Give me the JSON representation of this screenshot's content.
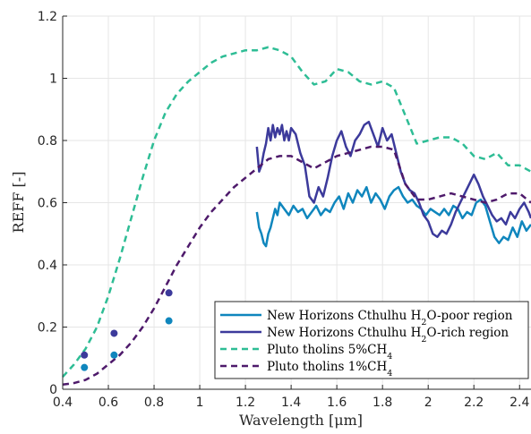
{
  "chart_data": {
    "type": "line",
    "xlabel": "Wavelength [μm]",
    "ylabel": "REFF [-]",
    "xlim": [
      0.4,
      2.45
    ],
    "ylim": [
      0,
      1.2
    ],
    "x_ticks": [
      "0.4",
      "0.6",
      "0.8",
      "1",
      "1.2",
      "1.4",
      "1.6",
      "1.8",
      "2",
      "2.2",
      "2.4"
    ],
    "y_ticks": [
      "0",
      "0.2",
      "0.4",
      "0.6",
      "0.8",
      "1",
      "1.2"
    ],
    "grid": true,
    "legend_position": "bottom-right",
    "colors": {
      "h2o_poor": "#0f86bd",
      "h2o_rich": "#3c3a9b",
      "tholins_5": "#2ebd95",
      "tholins_1": "#4e1a6b"
    },
    "series": [
      {
        "name": "New Horizons Cthulhu H2O-poor region",
        "legend": [
          "New Horizons Cthulhu H",
          "2",
          "O-poor region"
        ],
        "style": "solid",
        "color": "#0f86bd",
        "x": [
          1.25,
          1.26,
          1.27,
          1.28,
          1.29,
          1.3,
          1.31,
          1.32,
          1.33,
          1.34,
          1.35,
          1.37,
          1.39,
          1.41,
          1.43,
          1.45,
          1.47,
          1.49,
          1.51,
          1.53,
          1.55,
          1.57,
          1.59,
          1.61,
          1.63,
          1.65,
          1.67,
          1.69,
          1.71,
          1.73,
          1.75,
          1.77,
          1.79,
          1.81,
          1.83,
          1.85,
          1.87,
          1.89,
          1.91,
          1.93,
          1.95,
          1.97,
          1.99,
          2.01,
          2.03,
          2.05,
          2.07,
          2.09,
          2.11,
          2.13,
          2.15,
          2.17,
          2.19,
          2.21,
          2.23,
          2.25,
          2.27,
          2.29,
          2.31,
          2.33,
          2.35,
          2.37,
          2.39,
          2.41,
          2.43,
          2.45
        ],
        "y": [
          0.57,
          0.52,
          0.5,
          0.47,
          0.46,
          0.5,
          0.52,
          0.55,
          0.58,
          0.56,
          0.6,
          0.58,
          0.56,
          0.59,
          0.57,
          0.58,
          0.55,
          0.57,
          0.59,
          0.56,
          0.58,
          0.57,
          0.6,
          0.62,
          0.58,
          0.63,
          0.6,
          0.64,
          0.62,
          0.65,
          0.6,
          0.63,
          0.61,
          0.58,
          0.62,
          0.64,
          0.65,
          0.62,
          0.6,
          0.61,
          0.59,
          0.58,
          0.56,
          0.58,
          0.57,
          0.56,
          0.58,
          0.56,
          0.59,
          0.58,
          0.55,
          0.57,
          0.56,
          0.6,
          0.61,
          0.59,
          0.54,
          0.49,
          0.47,
          0.49,
          0.48,
          0.52,
          0.49,
          0.54,
          0.51,
          0.53
        ]
      },
      {
        "name": "New Horizons Cthulhu H2O-rich region",
        "legend": [
          "New Horizons Cthulhu H",
          "2",
          "O-rich region"
        ],
        "style": "solid",
        "color": "#3c3a9b",
        "x": [
          1.25,
          1.26,
          1.27,
          1.28,
          1.29,
          1.3,
          1.31,
          1.32,
          1.33,
          1.34,
          1.35,
          1.36,
          1.37,
          1.38,
          1.39,
          1.4,
          1.42,
          1.44,
          1.46,
          1.48,
          1.5,
          1.52,
          1.54,
          1.56,
          1.58,
          1.6,
          1.62,
          1.64,
          1.66,
          1.68,
          1.7,
          1.72,
          1.74,
          1.76,
          1.78,
          1.8,
          1.82,
          1.84,
          1.86,
          1.88,
          1.9,
          1.92,
          1.94,
          1.96,
          1.98,
          2.0,
          2.02,
          2.04,
          2.06,
          2.08,
          2.1,
          2.12,
          2.14,
          2.16,
          2.18,
          2.2,
          2.22,
          2.24,
          2.26,
          2.28,
          2.3,
          2.32,
          2.34,
          2.36,
          2.38,
          2.4,
          2.42,
          2.44,
          2.45
        ],
        "y": [
          0.78,
          0.7,
          0.72,
          0.76,
          0.79,
          0.84,
          0.8,
          0.85,
          0.81,
          0.84,
          0.82,
          0.85,
          0.8,
          0.83,
          0.8,
          0.84,
          0.82,
          0.76,
          0.72,
          0.62,
          0.6,
          0.65,
          0.62,
          0.68,
          0.75,
          0.8,
          0.83,
          0.78,
          0.75,
          0.8,
          0.82,
          0.85,
          0.86,
          0.82,
          0.78,
          0.84,
          0.8,
          0.82,
          0.76,
          0.7,
          0.66,
          0.64,
          0.63,
          0.6,
          0.56,
          0.54,
          0.5,
          0.49,
          0.51,
          0.5,
          0.53,
          0.57,
          0.6,
          0.63,
          0.66,
          0.69,
          0.66,
          0.62,
          0.59,
          0.56,
          0.54,
          0.55,
          0.53,
          0.57,
          0.55,
          0.58,
          0.6,
          0.57,
          0.55
        ]
      },
      {
        "name": "Pluto tholins 5%CH4",
        "legend": [
          "Pluto tholins 5%CH",
          "4",
          ""
        ],
        "style": "dashed",
        "color": "#2ebd95",
        "x": [
          0.4,
          0.45,
          0.5,
          0.55,
          0.6,
          0.65,
          0.7,
          0.75,
          0.8,
          0.85,
          0.9,
          0.95,
          1.0,
          1.05,
          1.1,
          1.15,
          1.2,
          1.25,
          1.3,
          1.35,
          1.4,
          1.45,
          1.5,
          1.55,
          1.6,
          1.65,
          1.7,
          1.75,
          1.8,
          1.85,
          1.9,
          1.95,
          2.0,
          2.05,
          2.1,
          2.15,
          2.2,
          2.25,
          2.3,
          2.35,
          2.4,
          2.45
        ],
        "y": [
          0.04,
          0.08,
          0.13,
          0.2,
          0.3,
          0.42,
          0.55,
          0.68,
          0.8,
          0.89,
          0.95,
          0.99,
          1.02,
          1.05,
          1.07,
          1.08,
          1.09,
          1.09,
          1.1,
          1.09,
          1.07,
          1.02,
          0.98,
          0.99,
          1.03,
          1.02,
          0.99,
          0.98,
          0.99,
          0.97,
          0.88,
          0.79,
          0.8,
          0.81,
          0.81,
          0.79,
          0.75,
          0.74,
          0.76,
          0.72,
          0.72,
          0.7
        ]
      },
      {
        "name": "Pluto tholins 1%CH4",
        "legend": [
          "Pluto tholins 1%CH",
          "4",
          ""
        ],
        "style": "dashed",
        "color": "#4e1a6b",
        "x": [
          0.4,
          0.45,
          0.5,
          0.55,
          0.6,
          0.65,
          0.7,
          0.75,
          0.8,
          0.85,
          0.9,
          0.95,
          1.0,
          1.05,
          1.1,
          1.15,
          1.2,
          1.25,
          1.3,
          1.35,
          1.4,
          1.45,
          1.5,
          1.55,
          1.6,
          1.65,
          1.7,
          1.75,
          1.8,
          1.85,
          1.9,
          1.95,
          2.0,
          2.05,
          2.1,
          2.15,
          2.2,
          2.25,
          2.3,
          2.35,
          2.4,
          2.45
        ],
        "y": [
          0.015,
          0.02,
          0.03,
          0.05,
          0.08,
          0.11,
          0.15,
          0.2,
          0.26,
          0.33,
          0.4,
          0.46,
          0.52,
          0.57,
          0.61,
          0.65,
          0.68,
          0.71,
          0.74,
          0.75,
          0.75,
          0.73,
          0.71,
          0.73,
          0.75,
          0.76,
          0.77,
          0.78,
          0.78,
          0.77,
          0.66,
          0.61,
          0.61,
          0.62,
          0.63,
          0.62,
          0.61,
          0.6,
          0.61,
          0.63,
          0.63,
          0.6
        ]
      }
    ],
    "points": [
      {
        "color": "#3c3a9b",
        "x": [
          0.495,
          0.625,
          0.865
        ],
        "y": [
          0.11,
          0.18,
          0.31
        ]
      },
      {
        "color": "#0f86bd",
        "x": [
          0.495,
          0.625,
          0.865
        ],
        "y": [
          0.07,
          0.11,
          0.22
        ]
      }
    ]
  }
}
